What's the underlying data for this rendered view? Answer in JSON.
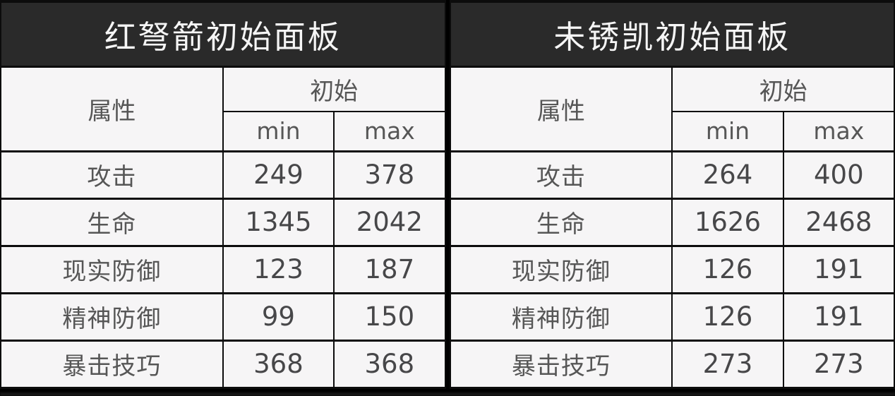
{
  "colors": {
    "title_bg": "#2a2a2a",
    "title_text": "#f5f5f5",
    "cell_bg": "#f6f5f6",
    "border": "#0c0c0c",
    "header_text": "#565656",
    "value_text": "#474749"
  },
  "tables": [
    {
      "title": "红弩箭初始面板",
      "headers": {
        "attribute": "属性",
        "initial": "初始",
        "min": "min",
        "max": "max"
      },
      "rows": [
        {
          "attr": "攻击",
          "min": "249",
          "max": "378"
        },
        {
          "attr": "生命",
          "min": "1345",
          "max": "2042"
        },
        {
          "attr": "现实防御",
          "min": "123",
          "max": "187"
        },
        {
          "attr": "精神防御",
          "min": "99",
          "max": "150"
        },
        {
          "attr": "暴击技巧",
          "min": "368",
          "max": "368"
        }
      ]
    },
    {
      "title": "未锈凯初始面板",
      "headers": {
        "attribute": "属性",
        "initial": "初始",
        "min": "min",
        "max": "max"
      },
      "rows": [
        {
          "attr": "攻击",
          "min": "264",
          "max": "400"
        },
        {
          "attr": "生命",
          "min": "1626",
          "max": "2468"
        },
        {
          "attr": "现实防御",
          "min": "126",
          "max": "191"
        },
        {
          "attr": "精神防御",
          "min": "126",
          "max": "191"
        },
        {
          "attr": "暴击技巧",
          "min": "273",
          "max": "273"
        }
      ]
    }
  ]
}
